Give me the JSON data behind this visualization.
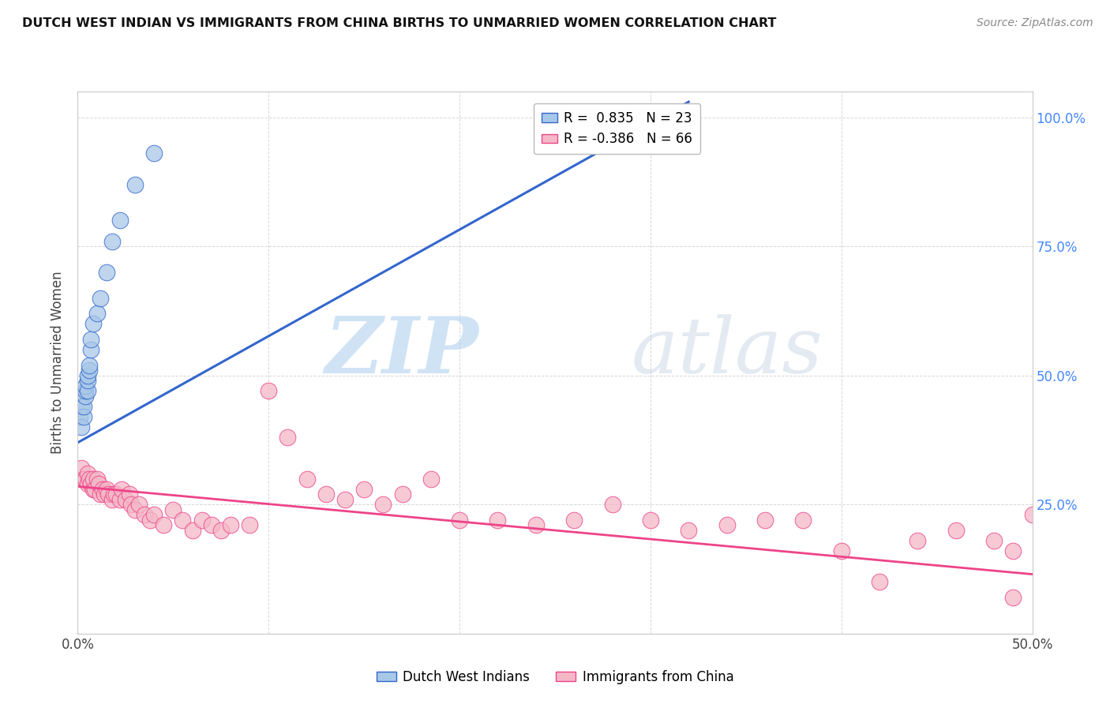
{
  "title": "DUTCH WEST INDIAN VS IMMIGRANTS FROM CHINA BIRTHS TO UNMARRIED WOMEN CORRELATION CHART",
  "source": "Source: ZipAtlas.com",
  "ylabel": "Births to Unmarried Women",
  "xlim": [
    0.0,
    0.5
  ],
  "ylim": [
    0.0,
    1.05
  ],
  "blue_color": "#a8c8e8",
  "pink_color": "#f4b8c8",
  "blue_line_color": "#3366cc",
  "pink_line_color": "#ee4488",
  "watermark_zip": "ZIP",
  "watermark_atlas": "atlas",
  "blue_scatter_x": [
    0.001,
    0.002,
    0.002,
    0.003,
    0.003,
    0.004,
    0.004,
    0.004,
    0.005,
    0.005,
    0.005,
    0.006,
    0.006,
    0.007,
    0.007,
    0.008,
    0.01,
    0.012,
    0.015,
    0.018,
    0.022,
    0.03,
    0.04
  ],
  "blue_scatter_y": [
    0.42,
    0.4,
    0.44,
    0.42,
    0.44,
    0.46,
    0.47,
    0.48,
    0.47,
    0.49,
    0.5,
    0.51,
    0.52,
    0.55,
    0.57,
    0.6,
    0.62,
    0.65,
    0.7,
    0.76,
    0.8,
    0.87,
    0.93
  ],
  "pink_scatter_x": [
    0.002,
    0.003,
    0.004,
    0.005,
    0.005,
    0.006,
    0.007,
    0.008,
    0.008,
    0.009,
    0.01,
    0.011,
    0.012,
    0.013,
    0.014,
    0.015,
    0.016,
    0.018,
    0.019,
    0.02,
    0.022,
    0.023,
    0.025,
    0.027,
    0.028,
    0.03,
    0.032,
    0.035,
    0.038,
    0.04,
    0.045,
    0.05,
    0.055,
    0.06,
    0.065,
    0.07,
    0.075,
    0.08,
    0.09,
    0.1,
    0.11,
    0.12,
    0.13,
    0.14,
    0.15,
    0.16,
    0.17,
    0.185,
    0.2,
    0.22,
    0.24,
    0.26,
    0.28,
    0.3,
    0.32,
    0.34,
    0.36,
    0.38,
    0.4,
    0.42,
    0.44,
    0.46,
    0.48,
    0.49,
    0.5,
    0.49
  ],
  "pink_scatter_y": [
    0.32,
    0.3,
    0.3,
    0.29,
    0.31,
    0.3,
    0.29,
    0.28,
    0.3,
    0.28,
    0.3,
    0.29,
    0.27,
    0.28,
    0.27,
    0.28,
    0.27,
    0.26,
    0.27,
    0.27,
    0.26,
    0.28,
    0.26,
    0.27,
    0.25,
    0.24,
    0.25,
    0.23,
    0.22,
    0.23,
    0.21,
    0.24,
    0.22,
    0.2,
    0.22,
    0.21,
    0.2,
    0.21,
    0.21,
    0.47,
    0.38,
    0.3,
    0.27,
    0.26,
    0.28,
    0.25,
    0.27,
    0.3,
    0.22,
    0.22,
    0.21,
    0.22,
    0.25,
    0.22,
    0.2,
    0.21,
    0.22,
    0.22,
    0.16,
    0.1,
    0.18,
    0.2,
    0.18,
    0.16,
    0.23,
    0.07
  ],
  "blue_line_x0": 0.0,
  "blue_line_y0": 0.37,
  "blue_line_x1": 0.32,
  "blue_line_y1": 1.03,
  "pink_line_x0": 0.0,
  "pink_line_y0": 0.285,
  "pink_line_x1": 0.5,
  "pink_line_y1": 0.115
}
